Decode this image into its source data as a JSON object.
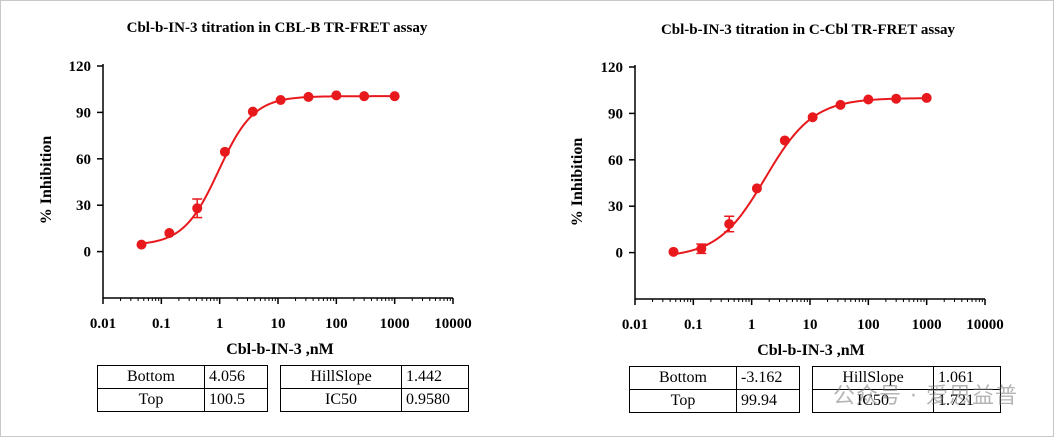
{
  "chart_data": [
    {
      "type": "scatter",
      "title": "Cbl-b-IN-3 titration in CBL-B TR-FRET assay",
      "xlabel": "Cbl-b-IN-3 ,nM",
      "ylabel": "% Inhibition",
      "xscale": "log",
      "xlim": [
        0.01,
        10000
      ],
      "ylim": [
        -30,
        120
      ],
      "xticks": [
        "0.01",
        "0.1",
        "1",
        "10",
        "100",
        "1000",
        "10000"
      ],
      "yticks": [
        "0",
        "30",
        "60",
        "90",
        "120"
      ],
      "color": "#e8191c",
      "fit": "four-parameter logistic",
      "x": [
        0.0457,
        0.137,
        0.412,
        1.23,
        3.7,
        11.1,
        33.3,
        100,
        300,
        1000
      ],
      "y": [
        4.5,
        12,
        28,
        64.5,
        90.5,
        98,
        100,
        101,
        100.5,
        100.5
      ],
      "yerr": [
        0,
        0,
        6,
        0,
        0,
        0,
        0,
        0,
        0,
        0
      ],
      "params": {
        "bottom_label": "Bottom",
        "bottom": "4.056",
        "top_label": "Top",
        "top": "100.5",
        "hillslope_label": "HillSlope",
        "hillslope": "1.442",
        "ic50_label": "IC50",
        "ic50": "0.9580"
      }
    },
    {
      "type": "scatter",
      "title": "Cbl-b-IN-3 titration in C-Cbl TR-FRET assay",
      "xlabel": "Cbl-b-IN-3 ,nM",
      "ylabel": "% Inhibition",
      "xscale": "log",
      "xlim": [
        0.01,
        10000
      ],
      "ylim": [
        -30,
        120
      ],
      "xticks": [
        "0.01",
        "0.1",
        "1",
        "10",
        "100",
        "1000",
        "10000"
      ],
      "yticks": [
        "0",
        "30",
        "60",
        "90",
        "120"
      ],
      "color": "#e8191c",
      "fit": "four-parameter logistic",
      "x": [
        0.0457,
        0.137,
        0.412,
        1.23,
        3.7,
        11.1,
        33.3,
        100,
        300,
        1000
      ],
      "y": [
        0.5,
        2.5,
        18.5,
        41.5,
        72.5,
        87.5,
        95.5,
        99,
        99.5,
        100
      ],
      "yerr": [
        0,
        3,
        5,
        0,
        0,
        0,
        0,
        0,
        0,
        0
      ],
      "params": {
        "bottom_label": "Bottom",
        "bottom": "-3.162",
        "top_label": "Top",
        "top": "99.94",
        "hillslope_label": "HillSlope",
        "hillslope": "1.061",
        "ic50_label": "IC50",
        "ic50": "1.721"
      }
    }
  ],
  "watermark": "公众号 · 爱思益普"
}
